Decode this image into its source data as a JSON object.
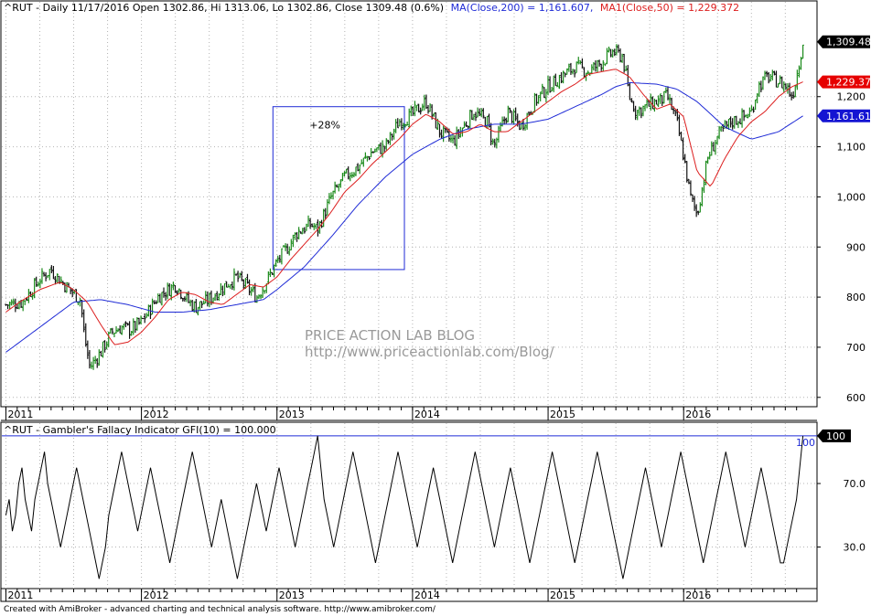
{
  "colors": {
    "ma200": "#1f2bd6",
    "ma50": "#dc1e1e",
    "price": "#000000",
    "close_badge": "#000000",
    "ma50_badge": "#e60000",
    "ma200_badge": "#1414d2",
    "ref_line": "#1f2bd6",
    "grid": "#b4b4b4"
  },
  "chart_data": [
    {
      "type": "ohlc",
      "header": {
        "symbol_info": "^RUT - Daily 11/17/2016 Open 1302.86, Hi 1313.06, Lo 1302.86, Close 1309.48 (0.6%)",
        "ma200_label": "MA(Close,200) = 1,161.607,",
        "ma50_label": "MA1(Close,50) = 1,229.372"
      },
      "y_ticks": [
        "600",
        "700",
        "800",
        "900",
        "1,000",
        "1,100",
        "1,200"
      ],
      "y_tick_values": [
        600,
        700,
        800,
        900,
        1000,
        1100,
        1200
      ],
      "ylim": [
        585,
        1360
      ],
      "x_ticks": [
        "2011",
        "2012",
        "2013",
        "2014",
        "2015",
        "2016"
      ],
      "x_tick_values": [
        2011.0,
        2012.0,
        2013.0,
        2014.0,
        2015.0,
        2016.0
      ],
      "xlim": [
        2010.97,
        2016.93
      ],
      "badges": {
        "close": "1,309.48",
        "ma50": "1,229.37",
        "ma200": "1,161.61"
      },
      "badge_values": {
        "close": 1309.48,
        "ma50": 1229.37,
        "ma200": 1161.61
      },
      "annotation": {
        "label": "+28%",
        "x_range": [
          2012.97,
          2013.94
        ],
        "y_range": [
          855,
          1180
        ]
      },
      "watermark": [
        "PRICE ACTION LAB BLOG",
        "http://www.priceactionlab.com/Blog/"
      ],
      "series": [
        {
          "name": "^RUT",
          "x": [
            2011.0,
            2011.12,
            2011.25,
            2011.33,
            2011.45,
            2011.55,
            2011.58,
            2011.62,
            2011.7,
            2011.78,
            2011.85,
            2011.92,
            2012.0,
            2012.12,
            2012.25,
            2012.35,
            2012.4,
            2012.5,
            2012.6,
            2012.7,
            2012.78,
            2012.85,
            2012.92,
            2013.0,
            2013.08,
            2013.15,
            2013.25,
            2013.3,
            2013.4,
            2013.5,
            2013.6,
            2013.7,
            2013.8,
            2013.9,
            2013.98,
            2014.1,
            2014.2,
            2014.3,
            2014.35,
            2014.45,
            2014.55,
            2014.6,
            2014.7,
            2014.8,
            2014.9,
            2015.0,
            2015.1,
            2015.2,
            2015.3,
            2015.4,
            2015.48,
            2015.55,
            2015.6,
            2015.65,
            2015.72,
            2015.8,
            2015.88,
            2015.95,
            2016.0,
            2016.05,
            2016.1,
            2016.18,
            2016.25,
            2016.35,
            2016.45,
            2016.5,
            2016.55,
            2016.62,
            2016.7,
            2016.76,
            2016.8,
            2016.84,
            2016.88
          ],
          "close": [
            785,
            790,
            835,
            855,
            820,
            795,
            720,
            660,
            690,
            730,
            740,
            735,
            750,
            800,
            825,
            790,
            780,
            795,
            820,
            840,
            820,
            800,
            830,
            870,
            900,
            930,
            945,
            935,
            1000,
            1040,
            1060,
            1090,
            1100,
            1150,
            1160,
            1190,
            1130,
            1110,
            1130,
            1170,
            1150,
            1100,
            1170,
            1140,
            1190,
            1220,
            1240,
            1260,
            1250,
            1270,
            1290,
            1280,
            1200,
            1170,
            1180,
            1190,
            1200,
            1150,
            1080,
            1000,
            965,
            1080,
            1120,
            1150,
            1160,
            1170,
            1220,
            1240,
            1230,
            1220,
            1200,
            1250,
            1309.48
          ]
        },
        {
          "name": "MA(Close,200)",
          "x": [
            2011.0,
            2011.25,
            2011.5,
            2011.7,
            2011.9,
            2012.1,
            2012.3,
            2012.5,
            2012.7,
            2012.9,
            2013.0,
            2013.2,
            2013.4,
            2013.6,
            2013.8,
            2014.0,
            2014.2,
            2014.4,
            2014.6,
            2014.8,
            2015.0,
            2015.2,
            2015.4,
            2015.5,
            2015.6,
            2015.8,
            2015.95,
            2016.1,
            2016.3,
            2016.5,
            2016.7,
            2016.88
          ],
          "values": [
            690,
            740,
            790,
            795,
            785,
            770,
            770,
            775,
            785,
            795,
            815,
            860,
            920,
            985,
            1040,
            1085,
            1115,
            1135,
            1145,
            1145,
            1155,
            1180,
            1205,
            1220,
            1228,
            1225,
            1215,
            1190,
            1140,
            1115,
            1130,
            1161.61
          ]
        },
        {
          "name": "MA1(Close,50)",
          "x": [
            2011.0,
            2011.1,
            2011.25,
            2011.4,
            2011.5,
            2011.6,
            2011.7,
            2011.8,
            2011.9,
            2012.0,
            2012.1,
            2012.2,
            2012.3,
            2012.4,
            2012.5,
            2012.6,
            2012.7,
            2012.8,
            2012.9,
            2013.0,
            2013.1,
            2013.2,
            2013.3,
            2013.4,
            2013.5,
            2013.6,
            2013.7,
            2013.8,
            2013.9,
            2014.0,
            2014.1,
            2014.2,
            2014.3,
            2014.4,
            2014.5,
            2014.6,
            2014.7,
            2014.8,
            2014.9,
            2015.0,
            2015.1,
            2015.2,
            2015.3,
            2015.4,
            2015.5,
            2015.6,
            2015.7,
            2015.8,
            2015.9,
            2016.0,
            2016.1,
            2016.2,
            2016.3,
            2016.4,
            2016.5,
            2016.6,
            2016.7,
            2016.8,
            2016.88
          ],
          "values": [
            770,
            790,
            815,
            830,
            815,
            790,
            745,
            705,
            710,
            730,
            760,
            795,
            810,
            805,
            790,
            785,
            805,
            825,
            820,
            840,
            875,
            905,
            935,
            970,
            1010,
            1035,
            1065,
            1090,
            1115,
            1145,
            1165,
            1150,
            1125,
            1130,
            1145,
            1130,
            1130,
            1150,
            1170,
            1190,
            1210,
            1225,
            1245,
            1250,
            1255,
            1240,
            1205,
            1175,
            1185,
            1160,
            1050,
            1020,
            1075,
            1120,
            1150,
            1170,
            1200,
            1220,
            1229.37
          ]
        }
      ]
    },
    {
      "type": "line",
      "header": "^RUT - Gambler's Fallacy Indicator GFI(10) = 100.000",
      "y_ticks": [
        "30.0",
        "70.0"
      ],
      "y_tick_values": [
        30,
        70
      ],
      "ylim": [
        5,
        108
      ],
      "x_ticks": [
        "2011",
        "2012",
        "2013",
        "2014",
        "2015",
        "2016"
      ],
      "x_tick_values": [
        2011.0,
        2012.0,
        2013.0,
        2014.0,
        2015.0,
        2016.0
      ],
      "xlim": [
        2010.97,
        2016.93
      ],
      "reference_line": {
        "value": 100,
        "label": "100"
      },
      "badge": "100",
      "badge_value": 100,
      "series": [
        {
          "name": "GFI(10)",
          "x_start": 2011.0,
          "x_end": 2016.88,
          "values": [
            50,
            60,
            40,
            50,
            70,
            80,
            60,
            50,
            40,
            60,
            70,
            80,
            90,
            70,
            60,
            50,
            40,
            30,
            40,
            50,
            60,
            70,
            80,
            70,
            60,
            50,
            40,
            30,
            20,
            10,
            20,
            30,
            50,
            60,
            70,
            80,
            90,
            80,
            70,
            60,
            50,
            40,
            50,
            60,
            70,
            80,
            70,
            60,
            50,
            40,
            30,
            20,
            30,
            40,
            50,
            60,
            70,
            80,
            90,
            80,
            70,
            60,
            50,
            40,
            30,
            40,
            50,
            60,
            50,
            40,
            30,
            20,
            10,
            20,
            30,
            40,
            50,
            60,
            70,
            60,
            50,
            40,
            50,
            60,
            70,
            80,
            70,
            60,
            50,
            40,
            30,
            40,
            50,
            60,
            70,
            80,
            90,
            100,
            80,
            60,
            50,
            40,
            30,
            40,
            50,
            60,
            70,
            80,
            90,
            80,
            70,
            60,
            50,
            40,
            30,
            20,
            30,
            40,
            50,
            60,
            70,
            80,
            90,
            80,
            70,
            60,
            50,
            40,
            30,
            40,
            50,
            60,
            70,
            80,
            70,
            60,
            50,
            40,
            30,
            20,
            30,
            40,
            50,
            60,
            70,
            80,
            90,
            80,
            70,
            60,
            50,
            40,
            30,
            40,
            50,
            60,
            70,
            80,
            70,
            60,
            50,
            40,
            30,
            20,
            30,
            40,
            50,
            60,
            70,
            80,
            90,
            80,
            70,
            60,
            50,
            40,
            30,
            20,
            30,
            40,
            50,
            60,
            70,
            80,
            90,
            80,
            70,
            60,
            50,
            40,
            30,
            20,
            10,
            20,
            30,
            40,
            50,
            60,
            70,
            80,
            70,
            60,
            50,
            40,
            30,
            40,
            50,
            60,
            70,
            80,
            90,
            80,
            70,
            60,
            50,
            40,
            30,
            20,
            30,
            40,
            50,
            60,
            70,
            80,
            90,
            80,
            70,
            60,
            50,
            40,
            30,
            40,
            50,
            60,
            70,
            80,
            70,
            60,
            50,
            40,
            30,
            20,
            20,
            30,
            40,
            50,
            60,
            80,
            100
          ]
        }
      ]
    }
  ],
  "footer": "Created with AmiBroker - advanced charting and technical analysis software. http://www.amibroker.com/"
}
